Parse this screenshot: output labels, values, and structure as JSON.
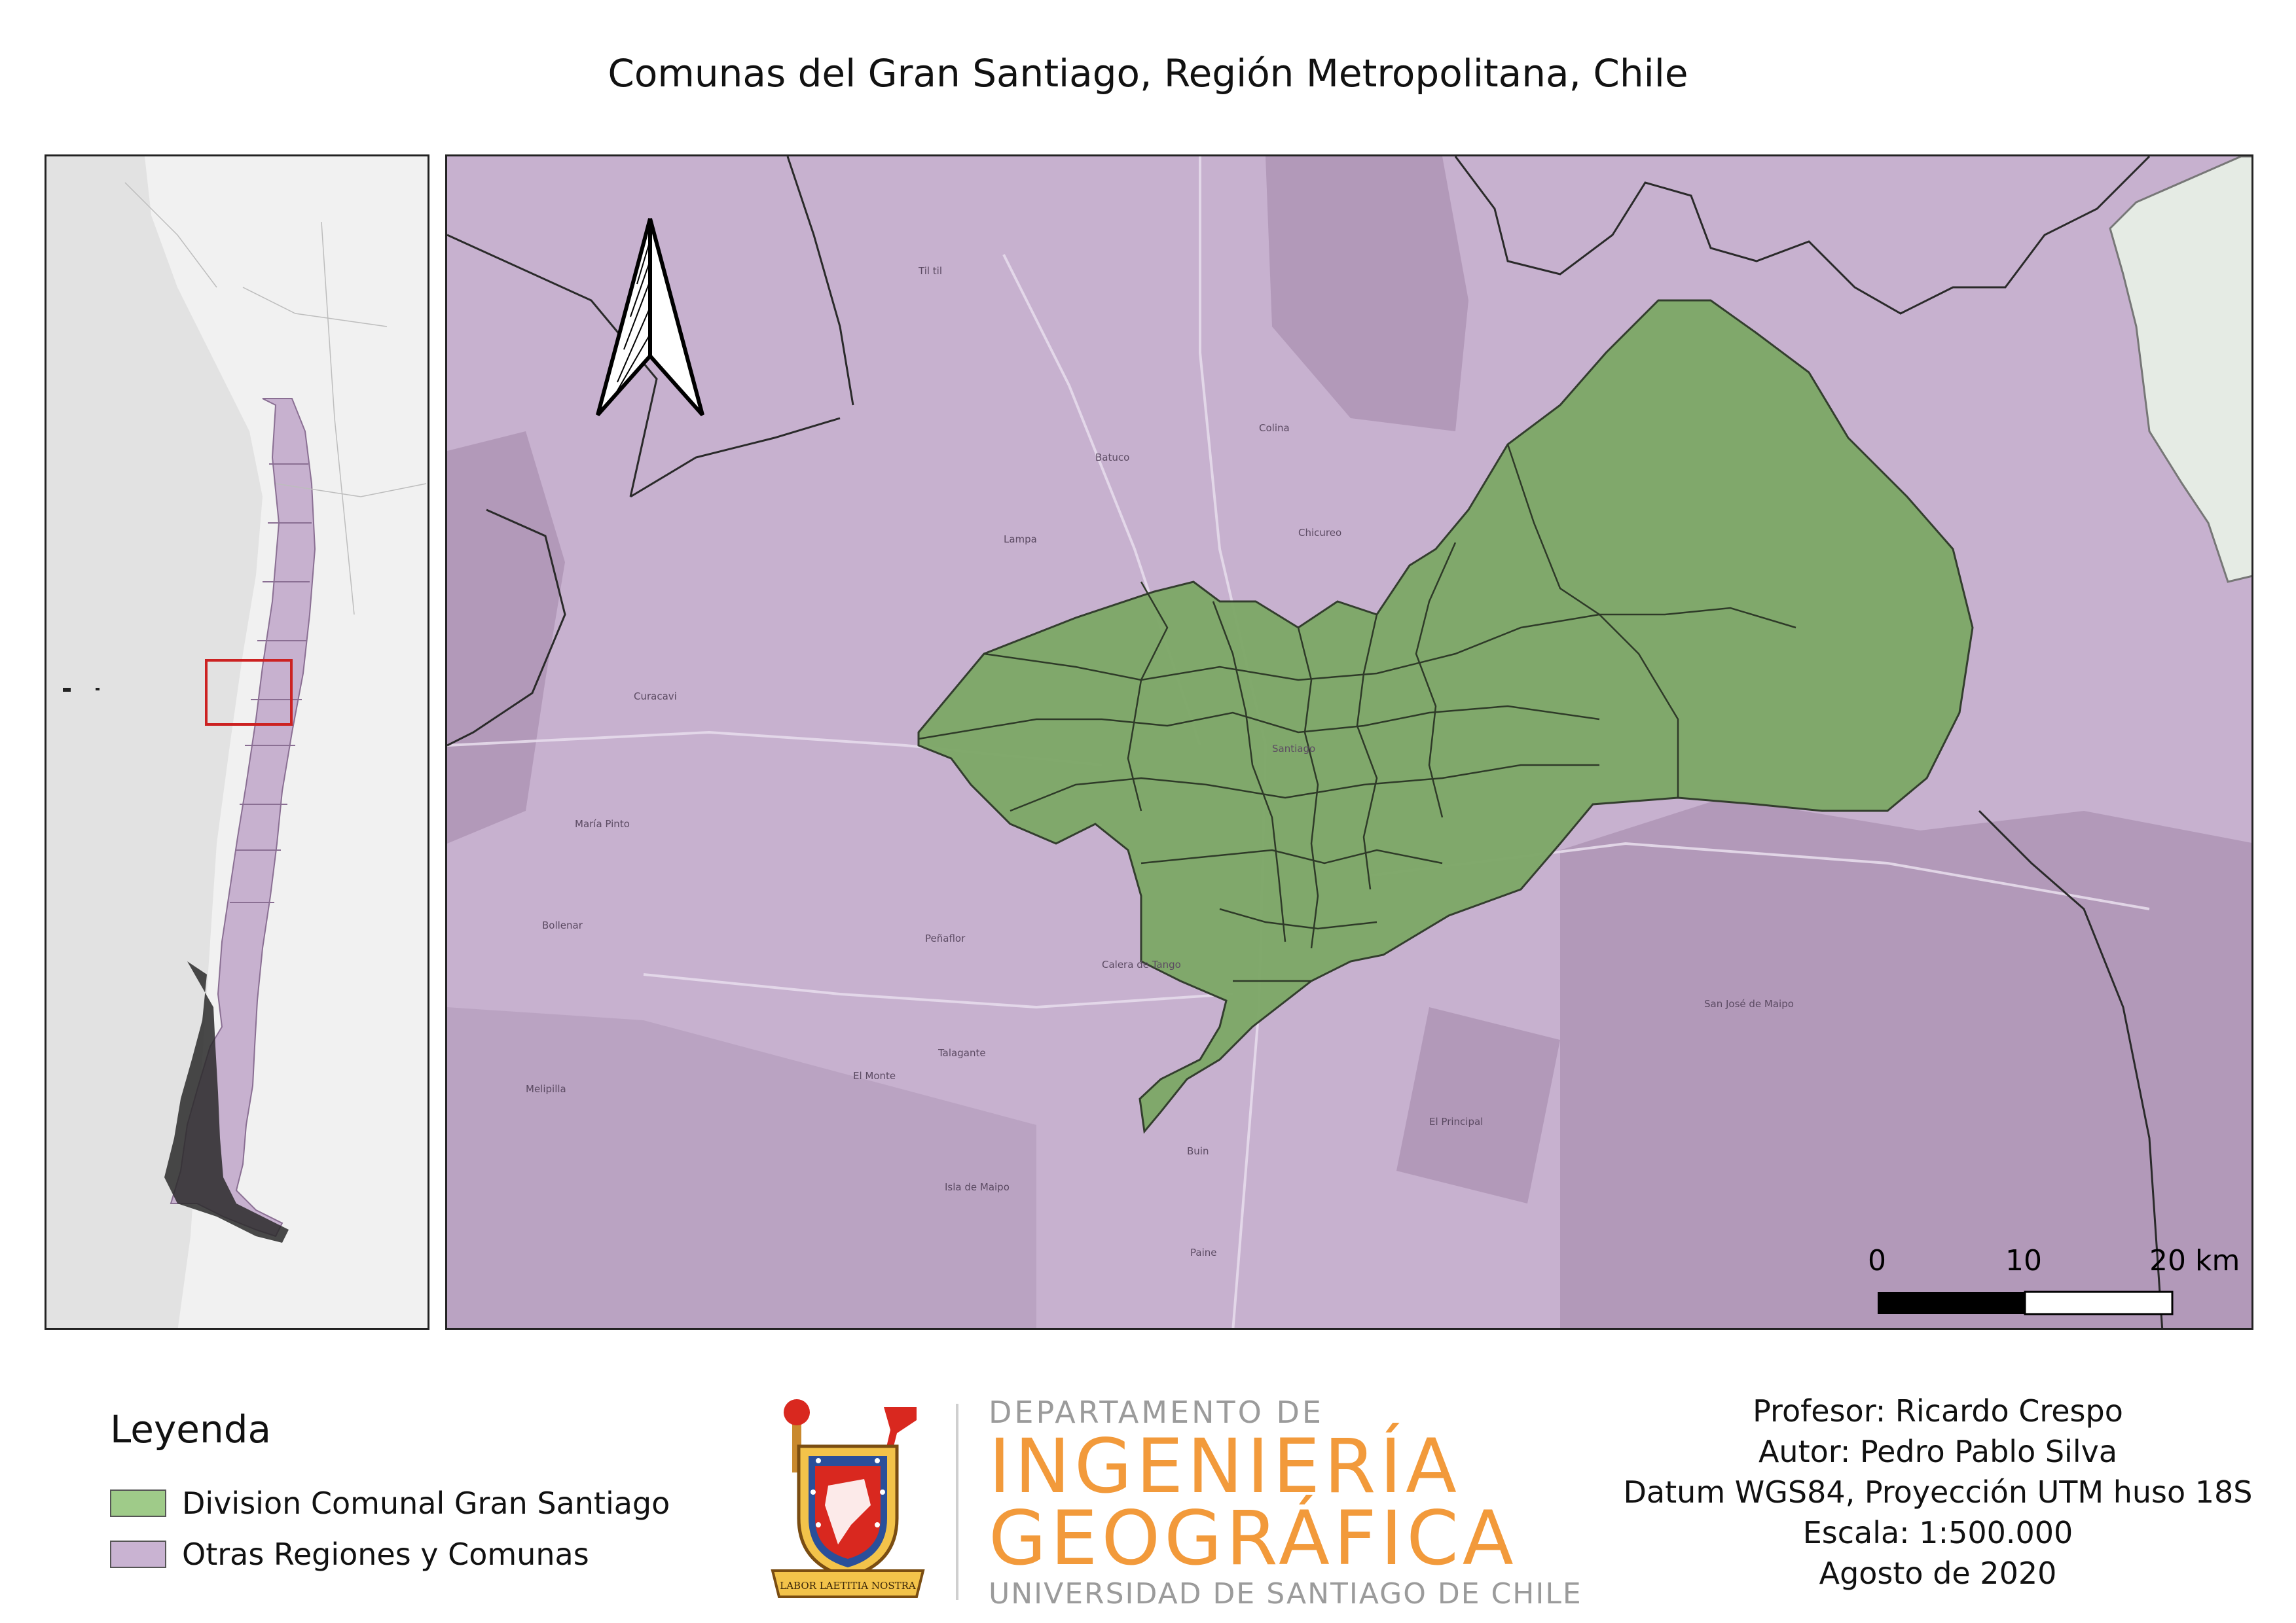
{
  "title": "Comunas del Gran Santiago, Región Metropolitana, Chile",
  "colors": {
    "gran_santiago_fill": "#7ea867",
    "gran_santiago_legend": "#9fcb89",
    "otras_fill": "#c7b1cf",
    "otras_legend": "#c9b3d2",
    "inset_box": "#cc2222",
    "logo_orange": "#f29a3b",
    "logo_gray": "#9b9b9b"
  },
  "map": {
    "place_labels": [
      "Til til",
      "Colina",
      "Batuco",
      "Lampa",
      "Chicureo",
      "Curacavi",
      "María Pinto",
      "Santiago",
      "Peñaflor",
      "Calera de Tango",
      "El Monte",
      "Talagante",
      "Melipilla",
      "Isla de Maipo",
      "Buin",
      "Paine",
      "San José de Maipo",
      "El Principal",
      "Bollenar"
    ],
    "north_arrow": "north-arrow-icon",
    "scale_bar": {
      "labels": [
        "0",
        "10",
        "20 km"
      ]
    }
  },
  "legend": {
    "title": "Leyenda",
    "items": [
      {
        "label": "Division Comunal Gran Santiago",
        "color": "#9fcb89"
      },
      {
        "label": "Otras Regiones y Comunas",
        "color": "#c9b3d2"
      }
    ]
  },
  "logo": {
    "line1": "DEPARTAMENTO DE",
    "line2": "INGENIERÍA",
    "line3": "GEOGRÁFICA",
    "line4": "UNIVERSIDAD DE SANTIAGO DE CHILE",
    "motto": "LABOR LAETITIA NOSTRA"
  },
  "credits": {
    "profesor": "Profesor: Ricardo Crespo",
    "autor": "Autor: Pedro Pablo Silva",
    "datum": "Datum WGS84, Proyección UTM huso 18S",
    "escala": "Escala: 1:500.000",
    "fecha": "Agosto de 2020"
  }
}
